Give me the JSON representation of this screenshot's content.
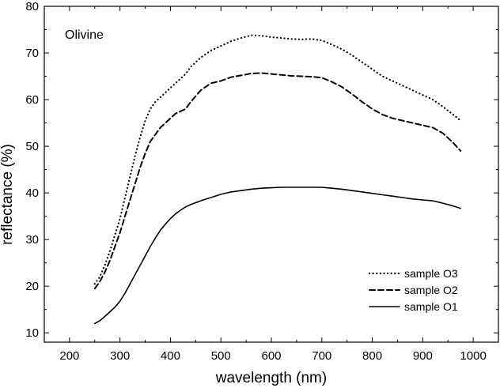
{
  "chart_data": {
    "type": "line",
    "title": "",
    "annotation": "Olivine",
    "xlabel": "wavelength (nm)",
    "ylabel": "reflectance (%)",
    "xlim": [
      150,
      1050
    ],
    "ylim": [
      8,
      80
    ],
    "xticks": [
      200,
      300,
      400,
      500,
      600,
      700,
      800,
      900,
      1000
    ],
    "yticks": [
      10,
      20,
      30,
      40,
      50,
      60,
      70,
      80
    ],
    "grid": false,
    "legend_position": "bottom-right",
    "series": [
      {
        "name": "sample O3",
        "style": "dotted",
        "x": [
          250,
          260,
          270,
          280,
          290,
          300,
          310,
          320,
          330,
          340,
          350,
          360,
          370,
          380,
          390,
          400,
          410,
          420,
          430,
          440,
          460,
          480,
          500,
          520,
          540,
          560,
          580,
          600,
          620,
          640,
          660,
          680,
          700,
          720,
          740,
          760,
          780,
          800,
          820,
          840,
          860,
          880,
          900,
          920,
          940,
          960,
          975
        ],
        "y": [
          20.5,
          22,
          24.5,
          27.5,
          31,
          34.5,
          39,
          43.5,
          48,
          52,
          55.5,
          58,
          59.5,
          60.5,
          61.5,
          62.5,
          63.5,
          64.5,
          65.5,
          67,
          69,
          70.5,
          71.5,
          72.5,
          73.2,
          73.8,
          73.7,
          73.4,
          73.2,
          73.0,
          72.9,
          73.0,
          72.7,
          71.8,
          70.8,
          69.5,
          68,
          66.5,
          65,
          64,
          63,
          62,
          61,
          60,
          58.5,
          56.8,
          55.5
        ]
      },
      {
        "name": "sample O2",
        "style": "dashed",
        "x": [
          250,
          260,
          270,
          280,
          290,
          300,
          310,
          320,
          330,
          340,
          350,
          360,
          370,
          380,
          390,
          400,
          410,
          420,
          430,
          440,
          460,
          480,
          500,
          520,
          540,
          560,
          580,
          600,
          620,
          640,
          660,
          680,
          700,
          720,
          740,
          760,
          780,
          800,
          820,
          840,
          860,
          880,
          900,
          920,
          940,
          960,
          975
        ],
        "y": [
          19.5,
          21,
          23,
          25.5,
          28.5,
          31.5,
          35,
          38.5,
          42,
          45.5,
          48.5,
          51,
          52.5,
          54,
          55,
          56,
          57,
          57.5,
          58,
          59.5,
          62,
          63.5,
          64,
          64.8,
          65.2,
          65.6,
          65.7,
          65.5,
          65.3,
          65.1,
          65.0,
          64.9,
          64.7,
          63.8,
          62.7,
          61.2,
          59.5,
          58,
          56.8,
          56,
          55.5,
          55,
          54.5,
          54,
          52.8,
          50.8,
          49
        ]
      },
      {
        "name": "sample O1",
        "style": "solid",
        "x": [
          250,
          260,
          270,
          280,
          290,
          300,
          310,
          320,
          330,
          340,
          350,
          360,
          370,
          380,
          390,
          400,
          410,
          420,
          430,
          440,
          460,
          480,
          500,
          520,
          540,
          560,
          580,
          600,
          620,
          640,
          660,
          680,
          700,
          720,
          740,
          760,
          780,
          800,
          820,
          840,
          860,
          880,
          900,
          920,
          940,
          960,
          975
        ],
        "y": [
          12,
          12.6,
          13.5,
          14.5,
          15.5,
          16.8,
          18.5,
          20.5,
          22.5,
          24.5,
          26.5,
          28.5,
          30.3,
          32,
          33.3,
          34.5,
          35.5,
          36.3,
          37,
          37.5,
          38.3,
          39,
          39.7,
          40.2,
          40.5,
          40.8,
          41.0,
          41.1,
          41.2,
          41.2,
          41.2,
          41.2,
          41.2,
          41.0,
          40.8,
          40.5,
          40.2,
          39.9,
          39.6,
          39.3,
          39.0,
          38.7,
          38.5,
          38.3,
          37.8,
          37.2,
          36.7
        ]
      }
    ]
  }
}
